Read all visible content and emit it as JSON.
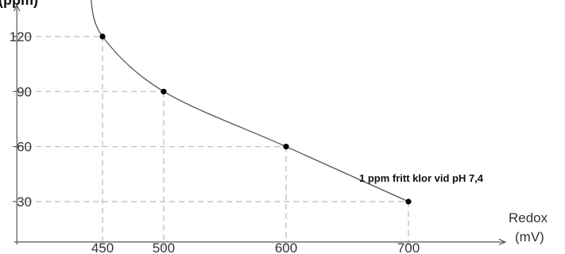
{
  "chart_data": {
    "type": "line",
    "title": "",
    "ylabel_visible": "(ppm)",
    "xlabel_line1": "Redox",
    "xlabel_line2": "(mV)",
    "annotation": "1 ppm fritt klor vid pH 7,4",
    "xlim": [
      380,
      770
    ],
    "ylim": [
      8,
      143
    ],
    "x_ticks": [
      450,
      500,
      600,
      700
    ],
    "y_ticks": [
      30,
      60,
      90,
      120
    ],
    "grid": "dashed guide lines from each point to both axes",
    "series": [
      {
        "points": [
          {
            "x": 450,
            "y": 120
          },
          {
            "x": 500,
            "y": 90
          },
          {
            "x": 600,
            "y": 60
          },
          {
            "x": 700,
            "y": 30
          }
        ]
      }
    ],
    "curve_extends_to": {
      "x": 440,
      "y": 143
    },
    "colors": {
      "axis": "#555555",
      "guide": "#b8b8b8",
      "curve": "#555555",
      "point": "#000000"
    }
  }
}
